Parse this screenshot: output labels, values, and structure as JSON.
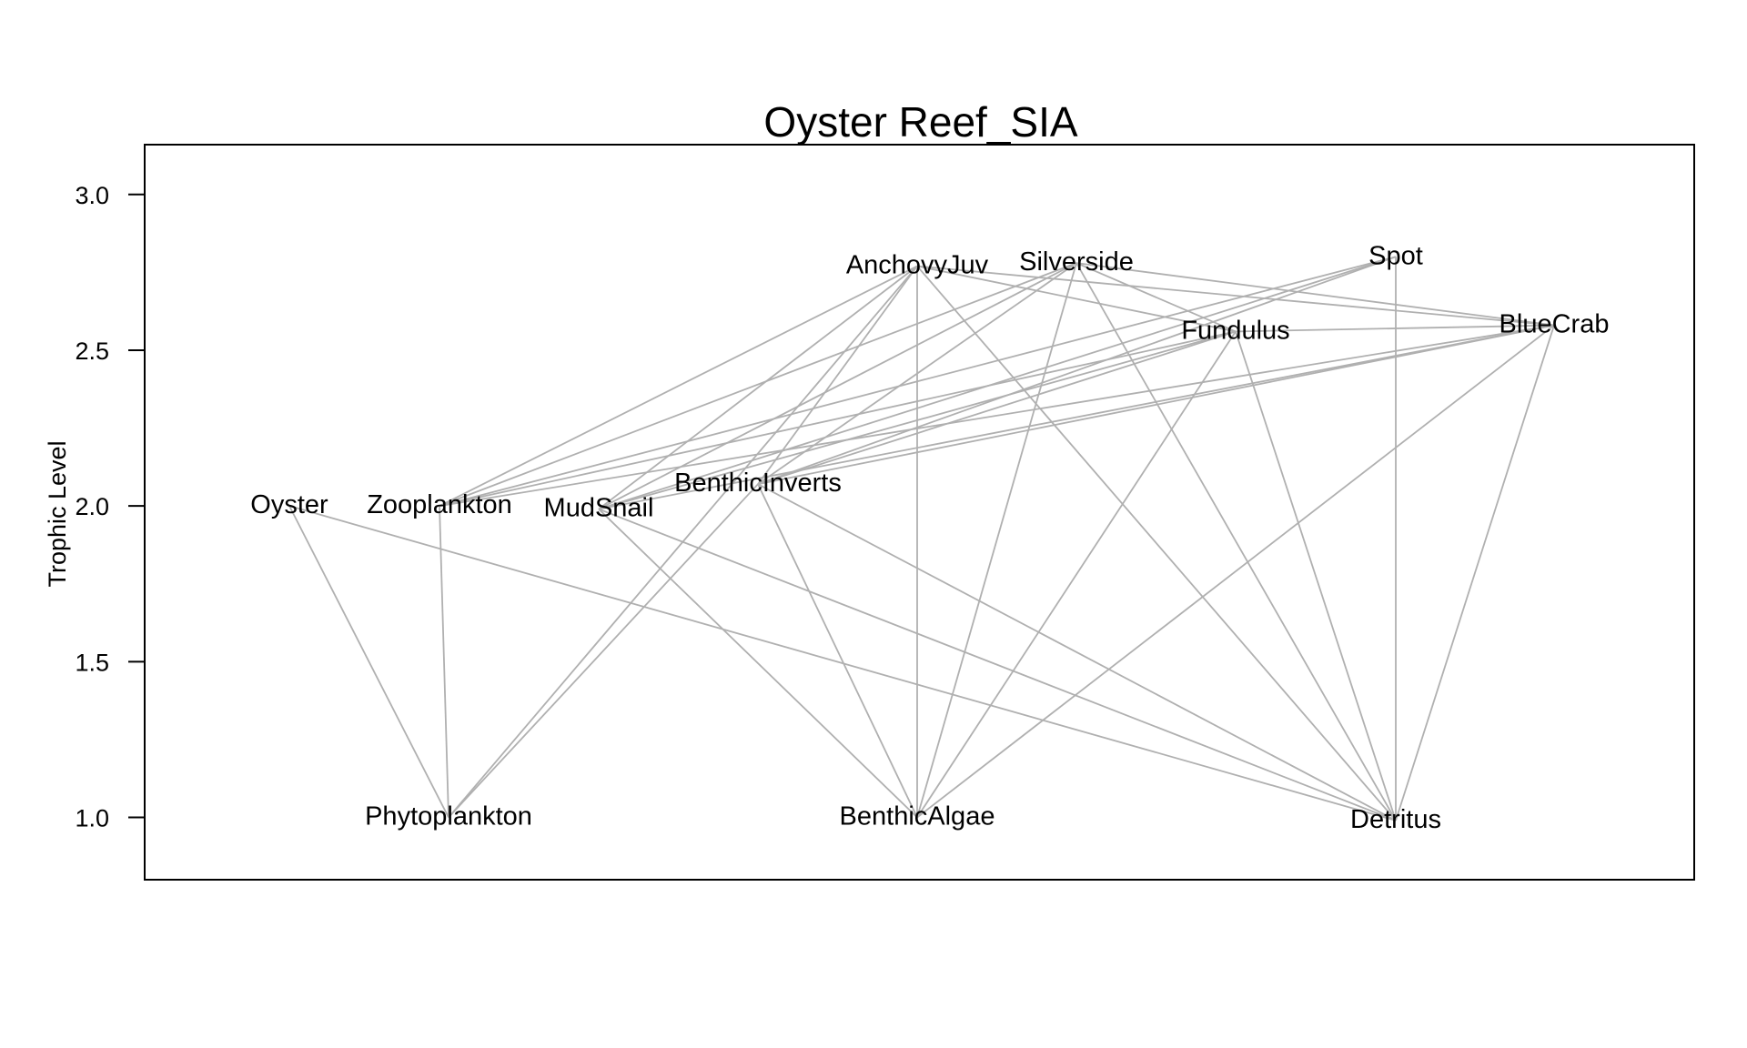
{
  "chart_data": {
    "type": "network",
    "title": "Oyster Reef_SIA",
    "ylabel": "Trophic Level",
    "ylim": [
      0.8,
      3.16
    ],
    "yticks": [
      "1.0",
      "1.5",
      "2.0",
      "2.5",
      "3.0"
    ],
    "colors": {
      "edge": "#b0b0b0",
      "label": "#000000"
    },
    "nodes": [
      {
        "name": "Oyster",
        "trophic_level": 2.0
      },
      {
        "name": "Zooplankton",
        "trophic_level": 2.0
      },
      {
        "name": "MudSnail",
        "trophic_level": 1.99
      },
      {
        "name": "BenthicInverts",
        "trophic_level": 2.07
      },
      {
        "name": "AnchovyJuv",
        "trophic_level": 2.77
      },
      {
        "name": "Silverside",
        "trophic_level": 2.78
      },
      {
        "name": "Spot",
        "trophic_level": 2.8
      },
      {
        "name": "Fundulus",
        "trophic_level": 2.56
      },
      {
        "name": "BlueCrab",
        "trophic_level": 2.58
      },
      {
        "name": "Phytoplankton",
        "trophic_level": 1.0
      },
      {
        "name": "BenthicAlgae",
        "trophic_level": 1.0
      },
      {
        "name": "Detritus",
        "trophic_level": 0.99
      }
    ],
    "edges": [
      [
        "Oyster",
        "Phytoplankton"
      ],
      [
        "Oyster",
        "Detritus"
      ],
      [
        "Zooplankton",
        "Phytoplankton"
      ],
      [
        "Zooplankton",
        "AnchovyJuv"
      ],
      [
        "Zooplankton",
        "Silverside"
      ],
      [
        "Zooplankton",
        "Spot"
      ],
      [
        "Zooplankton",
        "Fundulus"
      ],
      [
        "Zooplankton",
        "BlueCrab"
      ],
      [
        "MudSnail",
        "BenthicAlgae"
      ],
      [
        "MudSnail",
        "Detritus"
      ],
      [
        "MudSnail",
        "AnchovyJuv"
      ],
      [
        "MudSnail",
        "Silverside"
      ],
      [
        "MudSnail",
        "Spot"
      ],
      [
        "MudSnail",
        "Fundulus"
      ],
      [
        "MudSnail",
        "BlueCrab"
      ],
      [
        "BenthicInverts",
        "Phytoplankton"
      ],
      [
        "BenthicInverts",
        "BenthicAlgae"
      ],
      [
        "BenthicInverts",
        "Detritus"
      ],
      [
        "BenthicInverts",
        "AnchovyJuv"
      ],
      [
        "BenthicInverts",
        "Silverside"
      ],
      [
        "BenthicInverts",
        "Spot"
      ],
      [
        "BenthicInverts",
        "Fundulus"
      ],
      [
        "BenthicInverts",
        "BlueCrab"
      ],
      [
        "AnchovyJuv",
        "Phytoplankton"
      ],
      [
        "AnchovyJuv",
        "BenthicAlgae"
      ],
      [
        "AnchovyJuv",
        "Detritus"
      ],
      [
        "AnchovyJuv",
        "BlueCrab"
      ],
      [
        "AnchovyJuv",
        "Fundulus"
      ],
      [
        "Silverside",
        "BenthicAlgae"
      ],
      [
        "Silverside",
        "Detritus"
      ],
      [
        "Silverside",
        "BlueCrab"
      ],
      [
        "Silverside",
        "Fundulus"
      ],
      [
        "Spot",
        "Detritus"
      ],
      [
        "Fundulus",
        "BenthicAlgae"
      ],
      [
        "Fundulus",
        "Detritus"
      ],
      [
        "Fundulus",
        "BlueCrab"
      ],
      [
        "BlueCrab",
        "BenthicAlgae"
      ],
      [
        "BlueCrab",
        "Detritus"
      ]
    ]
  }
}
